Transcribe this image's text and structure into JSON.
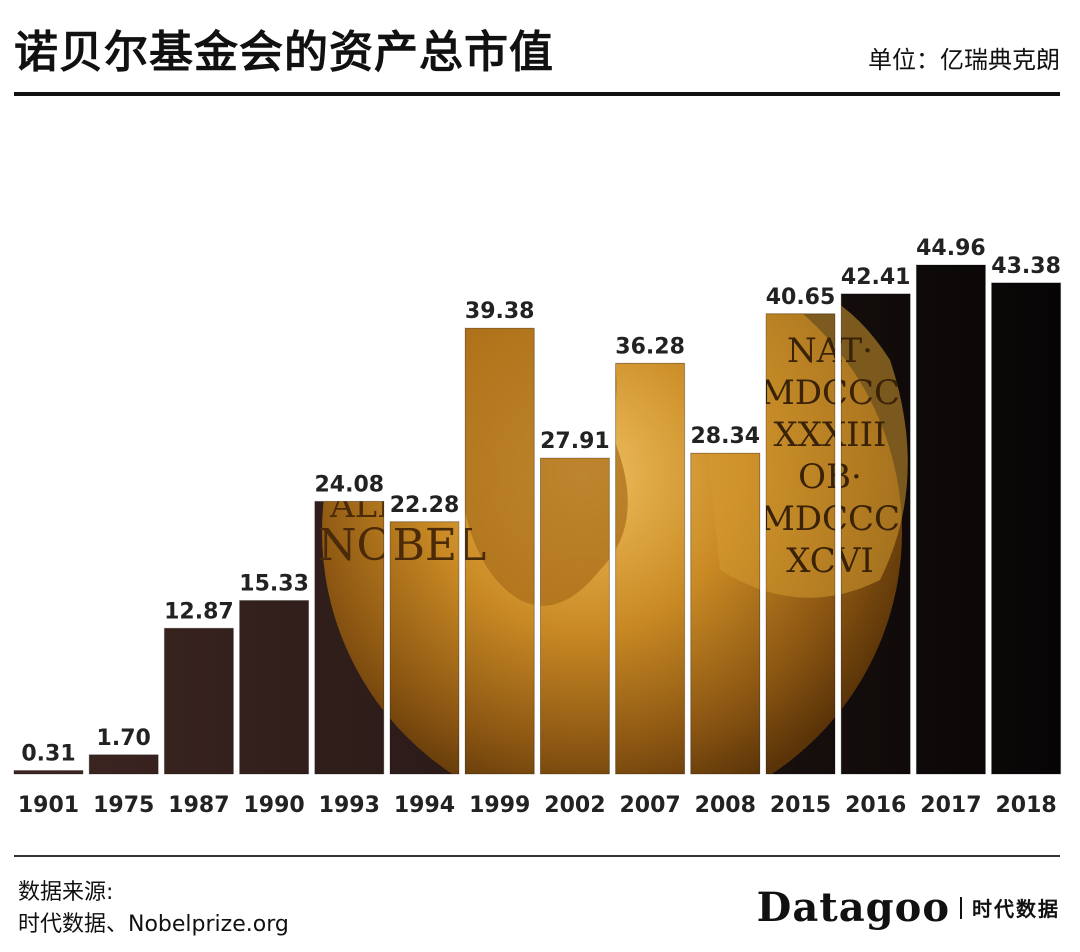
{
  "header": {
    "title": "诺贝尔基金会的资产总市值",
    "unit": "单位：亿瑞典克朗"
  },
  "footer": {
    "source_label": "数据来源:",
    "source_text": "时代数据、Nobelprize.org",
    "brand_name": "Datagoo",
    "brand_cn": "时代数据"
  },
  "medal_text": {
    "line1": "ALFR·",
    "line2": "NOBEL",
    "inscription": [
      "NAT·",
      "MDCCC",
      "XXXIII",
      "OB·",
      "MDCCC",
      "XCVI"
    ]
  },
  "colors": {
    "bar_dark": "#0a0808",
    "bar_brown": "#3a2320",
    "gold": "#c9902a",
    "gold_dark": "#7a4a10"
  },
  "chart_data": {
    "type": "bar",
    "title": "诺贝尔基金会的资产总市值",
    "unit": "单位：亿瑞典克朗",
    "categories": [
      "1901",
      "1975",
      "1987",
      "1990",
      "1993",
      "1994",
      "1999",
      "2002",
      "2007",
      "2008",
      "2015",
      "2016",
      "2017",
      "2018"
    ],
    "values": [
      0.31,
      1.7,
      12.87,
      15.33,
      24.08,
      22.28,
      39.38,
      27.91,
      36.28,
      28.34,
      40.65,
      42.41,
      44.96,
      43.38
    ],
    "value_labels": [
      "0.31",
      "1.70",
      "12.87",
      "15.33",
      "24.08",
      "22.28",
      "39.38",
      "27.91",
      "36.28",
      "28.34",
      "40.65",
      "42.41",
      "44.96",
      "43.38"
    ],
    "ylim": [
      0,
      53
    ],
    "grid": false,
    "legend": "none"
  }
}
